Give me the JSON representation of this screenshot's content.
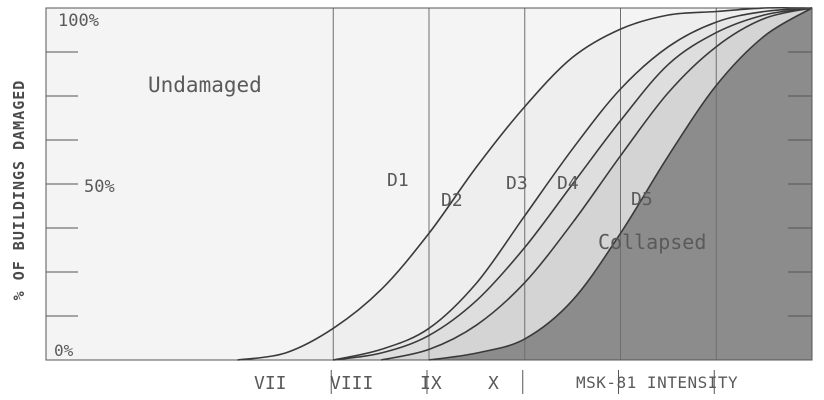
{
  "chart_data": {
    "type": "area",
    "ylabel": "% OF BUILDINGS DAMAGED",
    "xlabel": "MSK-81 INTENSITY",
    "y_tick_labels": [
      "0%",
      "50%",
      "100%"
    ],
    "x_tick_labels": [
      "VII",
      "VIII",
      "IX",
      "X"
    ],
    "ylim": [
      0,
      100
    ],
    "grid": true,
    "curves": [
      {
        "name": "D1",
        "x": [
          6.0,
          6.5,
          7.0,
          7.5,
          8.0,
          8.5,
          9.0,
          9.5,
          10.0,
          10.5,
          11.0,
          11.5,
          12.0
        ],
        "values": [
          0,
          2,
          9,
          20,
          36,
          55,
          72,
          86,
          94,
          98,
          99,
          100,
          100
        ]
      },
      {
        "name": "D2",
        "x": [
          7.0,
          7.5,
          8.0,
          8.5,
          9.0,
          9.5,
          10.0,
          10.5,
          11.0,
          11.5,
          12.0
        ],
        "values": [
          0,
          3,
          9,
          22,
          41,
          60,
          77,
          89,
          96,
          99,
          100
        ]
      },
      {
        "name": "D3",
        "x": [
          7.0,
          7.5,
          8.0,
          8.5,
          9.0,
          9.5,
          10.0,
          10.5,
          11.0,
          11.5,
          12.0
        ],
        "values": [
          0,
          2,
          7,
          17,
          32,
          50,
          68,
          84,
          93,
          98,
          100
        ]
      },
      {
        "name": "D4",
        "x": [
          7.5,
          8.0,
          8.5,
          9.0,
          9.5,
          10.0,
          10.5,
          11.0,
          11.5,
          12.0
        ],
        "values": [
          0,
          3,
          10,
          22,
          39,
          58,
          76,
          89,
          97,
          100
        ]
      },
      {
        "name": "D5",
        "x": [
          8.0,
          8.5,
          9.0,
          9.5,
          10.0,
          10.5,
          11.0,
          11.5,
          12.0
        ],
        "values": [
          0,
          2,
          6,
          17,
          36,
          58,
          78,
          92,
          100
        ]
      }
    ],
    "region_labels": [
      "Undamaged",
      "D1",
      "D2",
      "D3",
      "D4",
      "D5",
      "Collapsed"
    ],
    "colors": {
      "undamaged": "#f4f4f4",
      "d1": "#eeeeee",
      "d2": "#e6e6e6",
      "d3": "#dedede",
      "d4": "#d4d4d4",
      "d5": "#8c8c8c",
      "line": "#3a3a3a"
    }
  }
}
